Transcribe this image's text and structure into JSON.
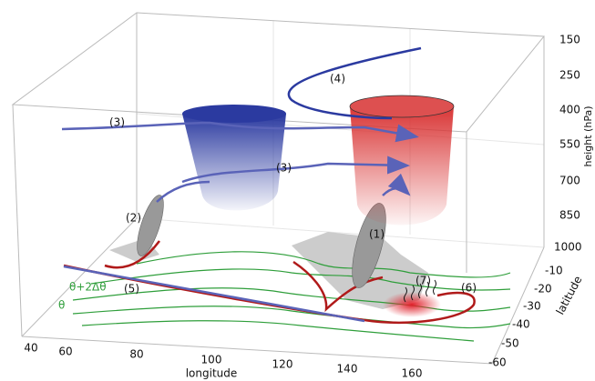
{
  "axes": {
    "height": {
      "title": "height (hPa)",
      "ticks": [
        "150",
        "250",
        "400",
        "550",
        "700",
        "850",
        "1000"
      ]
    },
    "latitude": {
      "title": "latitude",
      "ticks": [
        "-10",
        "-20",
        "-30",
        "-40",
        "-50",
        "-60"
      ]
    },
    "longitude": {
      "title": "longitude",
      "ticks": [
        "40",
        "60",
        "80",
        "100",
        "120",
        "140",
        "160"
      ]
    }
  },
  "labels": [
    "(1)",
    "(2)",
    "(3)",
    "(3)",
    "(4)",
    "(5)",
    "(6)",
    "(7)",
    "θ+2Δθ",
    "θ"
  ]
}
